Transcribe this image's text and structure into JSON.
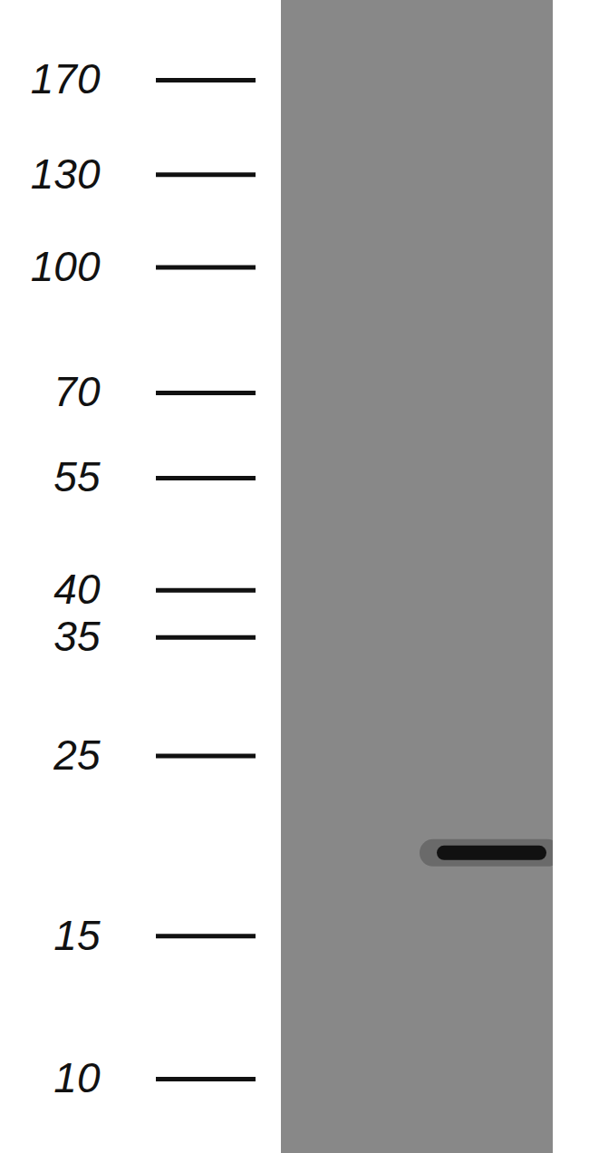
{
  "chart_data": {
    "type": "blot",
    "values": [
      19
    ],
    "ylim": [
      10,
      170
    ],
    "yticks": [
      10,
      15,
      25,
      35,
      40,
      55,
      70,
      100,
      130,
      170
    ],
    "log": "y",
    "color": "#111111",
    "tick_labels": "y"
  }
}
